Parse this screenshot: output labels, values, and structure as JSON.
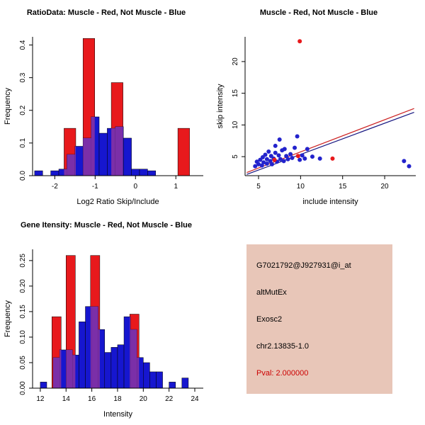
{
  "colors": {
    "hist_red": "#e8191c",
    "hist_blue": "#1616cf",
    "hist_overlap": "#7b2fa8",
    "point_blue": "#2323cc",
    "point_red": "#e8191c",
    "background": "#ffffff"
  },
  "chart_data": [
    {
      "type": "histogram",
      "title": "RatioData: Muscle - Red, Not Muscle - Blue",
      "xlabel": "Log2 Ratio Skip/Include",
      "ylabel": "Frequency",
      "xlim": [
        -2.55,
        1.68
      ],
      "ylim": [
        0,
        0.425
      ],
      "xticks": [
        -2,
        -1,
        0,
        1
      ],
      "xtick_labels": [
        "-2",
        "-1",
        "0",
        "1"
      ],
      "yticks": [
        0.0,
        0.1,
        0.2,
        0.3,
        0.4
      ],
      "ytick_labels": [
        "0.0",
        "0.1",
        "0.2",
        "0.3",
        "0.4"
      ],
      "grid": false,
      "legend": "none",
      "red_bars": [
        [
          -1.77,
          0.29,
          0.145
        ],
        [
          -1.3,
          0.29,
          0.42
        ],
        [
          -0.6,
          0.29,
          0.285
        ],
        [
          1.05,
          0.29,
          0.145
        ]
      ],
      "blue_bars": [
        [
          -2.5,
          0.2,
          0.015
        ],
        [
          -2.1,
          0.2,
          0.015
        ],
        [
          -1.9,
          0.2,
          0.02
        ],
        [
          -1.7,
          0.2,
          0.065
        ],
        [
          -1.5,
          0.2,
          0.09
        ],
        [
          -1.3,
          0.2,
          0.115
        ],
        [
          -1.1,
          0.2,
          0.18
        ],
        [
          -0.9,
          0.2,
          0.13
        ],
        [
          -0.7,
          0.2,
          0.145
        ],
        [
          -0.5,
          0.2,
          0.15
        ],
        [
          -0.3,
          0.2,
          0.115
        ],
        [
          -0.1,
          0.2,
          0.02
        ],
        [
          0.1,
          0.2,
          0.02
        ],
        [
          0.3,
          0.2,
          0.015
        ]
      ]
    },
    {
      "type": "scatter",
      "title": "Muscle - Red, Not Muscle - Blue",
      "xlabel": "include intensity",
      "ylabel": "skip intensity",
      "xlim": [
        3.4,
        23.7
      ],
      "ylim": [
        2.0,
        23.9
      ],
      "xticks": [
        5,
        10,
        15,
        20
      ],
      "xtick_labels": [
        "5",
        "10",
        "15",
        "20"
      ],
      "yticks": [
        5,
        10,
        15,
        20
      ],
      "ytick_labels": [
        "5",
        "10",
        "15",
        "20"
      ],
      "grid": false,
      "legend": "none",
      "blue_points": [
        [
          4.6,
          3.5
        ],
        [
          4.8,
          4.2
        ],
        [
          5.0,
          3.8
        ],
        [
          5.2,
          4.5
        ],
        [
          5.4,
          3.6
        ],
        [
          5.5,
          4.9
        ],
        [
          5.6,
          4.1
        ],
        [
          5.8,
          5.3
        ],
        [
          6.0,
          3.9
        ],
        [
          6.0,
          4.6
        ],
        [
          6.2,
          5.8
        ],
        [
          6.4,
          4.3
        ],
        [
          6.5,
          5.1
        ],
        [
          6.6,
          3.8
        ],
        [
          6.8,
          4.7
        ],
        [
          7.0,
          5.6
        ],
        [
          7.0,
          6.7
        ],
        [
          7.2,
          4.2
        ],
        [
          7.4,
          5.2
        ],
        [
          7.5,
          7.7
        ],
        [
          7.6,
          4.6
        ],
        [
          7.8,
          6.0
        ],
        [
          8.0,
          4.3
        ],
        [
          8.1,
          6.2
        ],
        [
          8.3,
          5.1
        ],
        [
          8.5,
          4.6
        ],
        [
          8.8,
          5.4
        ],
        [
          9.0,
          4.8
        ],
        [
          9.3,
          6.4
        ],
        [
          9.6,
          8.2
        ],
        [
          9.9,
          4.5
        ],
        [
          10.2,
          5.2
        ],
        [
          10.5,
          4.7
        ],
        [
          10.8,
          6.2
        ],
        [
          11.4,
          5.0
        ],
        [
          12.3,
          4.7
        ],
        [
          22.3,
          4.3
        ],
        [
          22.9,
          3.5
        ]
      ],
      "red_points": [
        [
          9.9,
          23.2
        ],
        [
          6.9,
          4.5
        ],
        [
          9.7,
          5.1
        ],
        [
          13.8,
          4.7
        ]
      ],
      "lines": [
        {
          "color": "#cc2222",
          "x1": 3.6,
          "y1": 2.5,
          "x2": 23.5,
          "y2": 12.6
        },
        {
          "color": "#151580",
          "x1": 3.6,
          "y1": 2.2,
          "x2": 23.5,
          "y2": 12.0
        }
      ]
    },
    {
      "type": "histogram",
      "title": "Gene Itensity: Muscle - Red, Not Muscle - Blue",
      "xlabel": "Intensity",
      "ylabel": "Frequency",
      "xlim": [
        11.4,
        24.66
      ],
      "ylim": [
        0,
        0.272
      ],
      "xticks": [
        12,
        14,
        16,
        18,
        20,
        22,
        24
      ],
      "xtick_labels": [
        "12",
        "14",
        "16",
        "18",
        "20",
        "22",
        "24"
      ],
      "yticks": [
        0.0,
        0.05,
        0.1,
        0.15,
        0.2,
        0.25
      ],
      "ytick_labels": [
        "0.00",
        "0.05",
        "0.10",
        "0.15",
        "0.20",
        "0.25"
      ],
      "grid": false,
      "legend": "none",
      "red_bars": [
        [
          12.9,
          0.72,
          0.14
        ],
        [
          14.0,
          0.72,
          0.26
        ],
        [
          15.9,
          0.72,
          0.26
        ],
        [
          18.95,
          0.72,
          0.145
        ]
      ],
      "blue_bars": [
        [
          12.0,
          0.5,
          0.012
        ],
        [
          13.0,
          0.5,
          0.06
        ],
        [
          13.5,
          0.5,
          0.075
        ],
        [
          14.0,
          0.5,
          0.075
        ],
        [
          14.5,
          0.5,
          0.065
        ],
        [
          15.0,
          0.5,
          0.13
        ],
        [
          15.5,
          0.5,
          0.16
        ],
        [
          16.0,
          0.5,
          0.16
        ],
        [
          16.5,
          0.5,
          0.115
        ],
        [
          17.0,
          0.5,
          0.07
        ],
        [
          17.5,
          0.5,
          0.08
        ],
        [
          18.0,
          0.5,
          0.085
        ],
        [
          18.5,
          0.5,
          0.14
        ],
        [
          19.0,
          0.5,
          0.115
        ],
        [
          19.5,
          0.5,
          0.06
        ],
        [
          20.0,
          0.5,
          0.05
        ],
        [
          20.5,
          0.5,
          0.032
        ],
        [
          21.0,
          0.5,
          0.032
        ],
        [
          22.0,
          0.5,
          0.012
        ],
        [
          23.0,
          0.5,
          0.02
        ]
      ]
    }
  ],
  "info_box": {
    "bg": "#e8c6b8",
    "lines": [
      {
        "text": "G7021792@J927931@i_at",
        "color": "#000000"
      },
      {
        "text": "altMutEx",
        "color": "#000000"
      },
      {
        "text": "Exosc2",
        "color": "#000000"
      },
      {
        "text": "chr2.13835-1.0",
        "color": "#000000"
      },
      {
        "text": "Pval: 2.000000",
        "color": "#cc0000"
      }
    ]
  }
}
